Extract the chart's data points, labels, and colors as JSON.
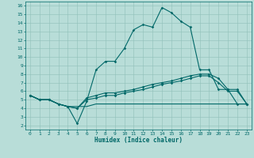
{
  "xlabel": "Humidex (Indice chaleur)",
  "xlim": [
    -0.5,
    23.5
  ],
  "ylim": [
    1.5,
    16.5
  ],
  "xticks": [
    0,
    1,
    2,
    3,
    4,
    5,
    6,
    7,
    8,
    9,
    10,
    11,
    12,
    13,
    14,
    15,
    16,
    17,
    18,
    19,
    20,
    21,
    22,
    23
  ],
  "yticks": [
    2,
    3,
    4,
    5,
    6,
    7,
    8,
    9,
    10,
    11,
    12,
    13,
    14,
    15,
    16
  ],
  "bg_color": "#b8ddd8",
  "grid_color": "#90c0b8",
  "line_color": "#006868",
  "line1_x": [
    0,
    1,
    2,
    3,
    4,
    5,
    6,
    7,
    8,
    9,
    10,
    11,
    12,
    13,
    14,
    15,
    16,
    17,
    18,
    19,
    20,
    21,
    22,
    23
  ],
  "line1_y": [
    5.5,
    5.0,
    5.0,
    4.5,
    4.2,
    2.2,
    4.8,
    8.5,
    9.5,
    9.5,
    11.0,
    13.2,
    13.8,
    13.5,
    15.8,
    15.2,
    14.2,
    13.5,
    8.5,
    8.5,
    6.2,
    6.2,
    4.5,
    4.5
  ],
  "line2_x": [
    0,
    1,
    2,
    3,
    4,
    5,
    6,
    7,
    8,
    9,
    10,
    11,
    12,
    13,
    14,
    15,
    16,
    17,
    18,
    19,
    20,
    21,
    22,
    23
  ],
  "line2_y": [
    5.5,
    5.0,
    5.0,
    4.5,
    4.2,
    4.0,
    5.2,
    5.5,
    5.8,
    5.8,
    6.0,
    6.2,
    6.5,
    6.8,
    7.0,
    7.2,
    7.5,
    7.8,
    8.0,
    8.0,
    7.5,
    6.2,
    6.2,
    4.5
  ],
  "line3_x": [
    0,
    1,
    2,
    3,
    4,
    5,
    6,
    7,
    8,
    9,
    10,
    11,
    12,
    13,
    14,
    15,
    16,
    17,
    18,
    19,
    20,
    21,
    22,
    23
  ],
  "line3_y": [
    5.5,
    5.0,
    5.0,
    4.5,
    4.2,
    4.2,
    4.2,
    4.5,
    4.5,
    4.5,
    4.5,
    4.5,
    4.5,
    4.5,
    4.5,
    4.5,
    4.5,
    4.5,
    4.5,
    4.5,
    4.5,
    4.5,
    4.5,
    4.5
  ],
  "line4_x": [
    0,
    1,
    2,
    3,
    4,
    5,
    6,
    7,
    8,
    9,
    10,
    11,
    12,
    13,
    14,
    15,
    16,
    17,
    18,
    19,
    20,
    21,
    22,
    23
  ],
  "line4_y": [
    5.5,
    5.0,
    5.0,
    4.5,
    4.2,
    4.0,
    5.0,
    5.2,
    5.5,
    5.5,
    5.8,
    6.0,
    6.2,
    6.5,
    6.8,
    7.0,
    7.2,
    7.5,
    7.8,
    7.8,
    7.0,
    6.0,
    6.0,
    4.5
  ]
}
